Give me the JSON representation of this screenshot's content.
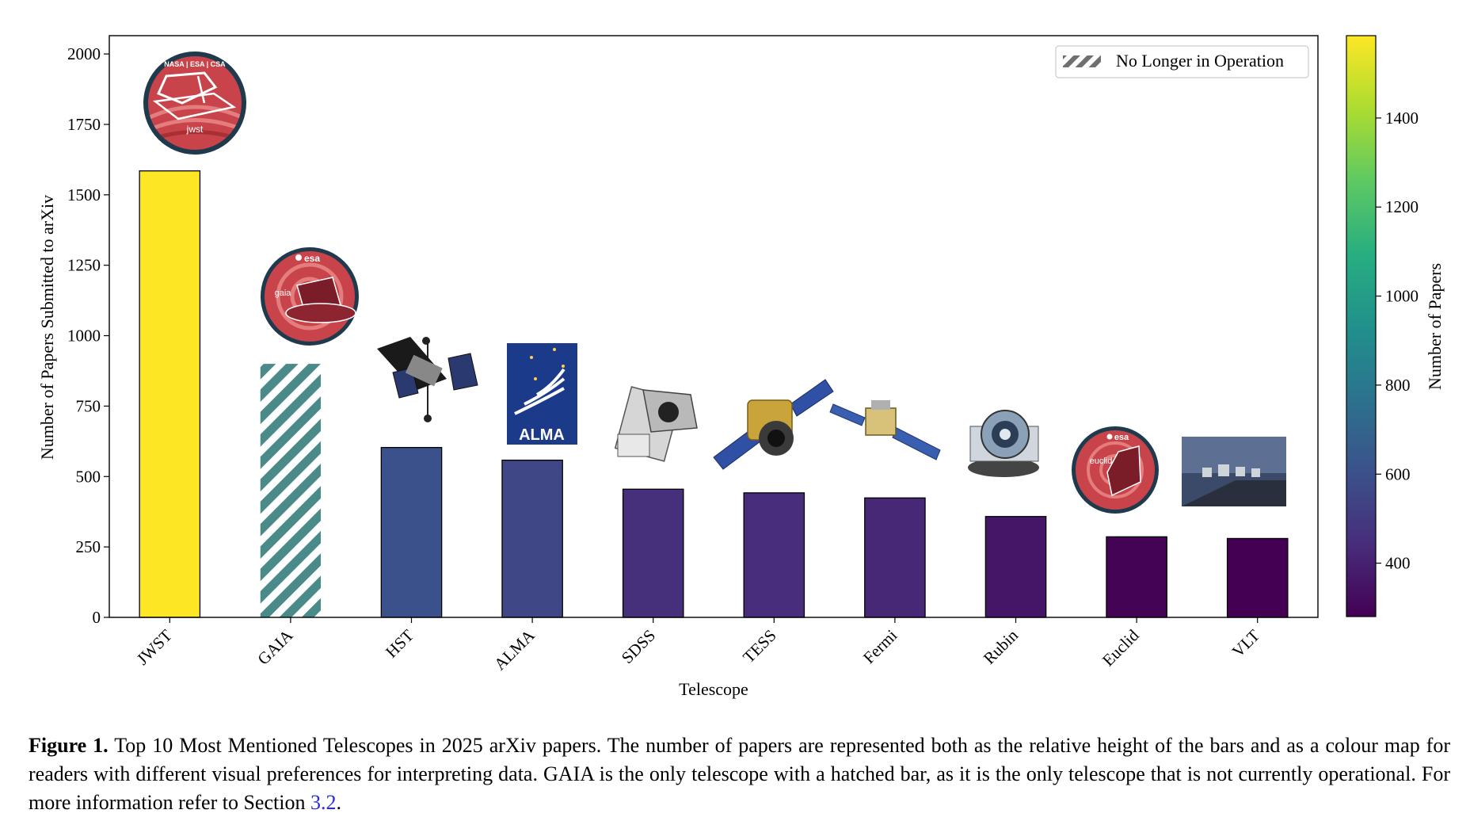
{
  "chart_data": {
    "type": "bar",
    "categories": [
      "JWST",
      "GAIA",
      "HST",
      "ALMA",
      "SDSS",
      "TESS",
      "Fermi",
      "Rubin",
      "Euclid",
      "VLT"
    ],
    "values": [
      1585,
      900,
      603,
      558,
      455,
      442,
      424,
      358,
      286,
      280
    ],
    "hatched": [
      false,
      true,
      false,
      false,
      false,
      false,
      false,
      false,
      false,
      false
    ],
    "xlabel": "Telescope",
    "ylabel": "Number of Papers Submitted to arXiv",
    "ylim": [
      0,
      2065
    ],
    "yticks": [
      0,
      250,
      500,
      750,
      1000,
      1250,
      1500,
      1750,
      2000
    ],
    "legend": {
      "label": "No Longer in Operation",
      "placement": "top-right"
    },
    "colorbar": {
      "label": "Number of Papers",
      "colormap": "viridis",
      "range": [
        280,
        1585
      ],
      "ticks": [
        400,
        600,
        800,
        1000,
        1200,
        1400
      ]
    },
    "bar_icons": [
      "jwst-mission-patch-icon",
      "gaia-mission-patch-icon",
      "hubble-telescope-icon",
      "alma-logo-icon",
      "sdss-telescope-icon",
      "tess-satellite-icon",
      "fermi-satellite-icon",
      "rubin-observatory-icon",
      "euclid-mission-patch-icon",
      "vlt-observatory-photo-icon"
    ],
    "grid": false
  },
  "icon_text": {
    "jwst_ring": "NASA | ESA | CSA",
    "jwst_name": "jwst",
    "gaia_agency": "esa",
    "gaia_name": "gaia",
    "alma_name": "ALMA",
    "euclid_agency": "esa",
    "euclid_name": "euclid"
  },
  "caption": {
    "label": "Figure 1.",
    "text_before_link": " Top 10 Most Mentioned Telescopes in 2025 arXiv papers. The number of papers are represented both as the relative height of the bars and as a colour map for readers with different visual preferences for interpreting data. GAIA is the only telescope with a hatched bar, as it is the only telescope that is not currently operational. For more information refer to Section ",
    "link_text": "3.2",
    "text_after_link": "."
  }
}
